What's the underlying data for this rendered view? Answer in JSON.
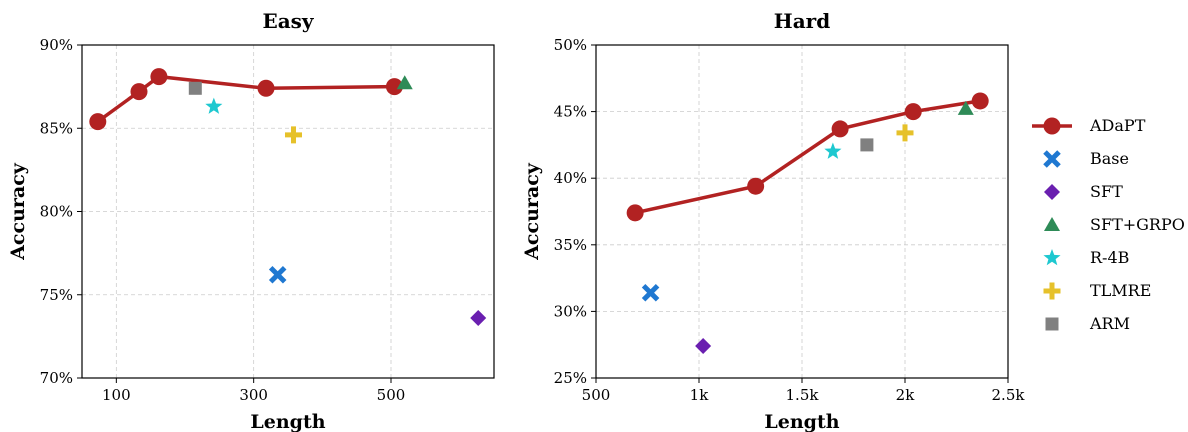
{
  "chart_data": [
    {
      "type": "scatter",
      "title": "Easy",
      "xlabel": "Length",
      "ylabel": "Accuracy",
      "xlim": [
        50,
        650
      ],
      "ylim": [
        70,
        90
      ],
      "xticks": [
        100,
        300,
        500
      ],
      "xtick_labels": [
        "100",
        "300",
        "500"
      ],
      "yticks": [
        70,
        75,
        80,
        85,
        90
      ],
      "ytick_labels": [
        "70%",
        "75%",
        "80%",
        "85%",
        "90%"
      ],
      "grid": true,
      "series": [
        {
          "name": "ADaPT",
          "marker": "circle-line",
          "color": "#b22222",
          "x": [
            73,
            133,
            162,
            318,
            505
          ],
          "y": [
            85.4,
            87.2,
            88.1,
            87.4,
            87.5
          ]
        },
        {
          "name": "Base",
          "marker": "x",
          "color": "#1f78d1",
          "x": [
            335
          ],
          "y": [
            76.2
          ]
        },
        {
          "name": "SFT",
          "marker": "diamond",
          "color": "#6a1fb0",
          "x": [
            627
          ],
          "y": [
            73.6
          ]
        },
        {
          "name": "SFT+GRPO",
          "marker": "triangle",
          "color": "#2e8b57",
          "x": [
            520
          ],
          "y": [
            87.7
          ]
        },
        {
          "name": "R-4B",
          "marker": "star",
          "color": "#1ec8d0",
          "x": [
            242
          ],
          "y": [
            86.3
          ]
        },
        {
          "name": "TLMRE",
          "marker": "plus",
          "color": "#e6c12a",
          "x": [
            358
          ],
          "y": [
            84.6
          ]
        },
        {
          "name": "ARM",
          "marker": "square",
          "color": "#808080",
          "x": [
            215
          ],
          "y": [
            87.4
          ]
        }
      ]
    },
    {
      "type": "scatter",
      "title": "Hard",
      "xlabel": "Length",
      "ylabel": "Accuracy",
      "xlim": [
        500,
        2500
      ],
      "ylim": [
        25,
        50
      ],
      "xticks": [
        500,
        1000,
        1500,
        2000,
        2500
      ],
      "xtick_labels": [
        "500",
        "1k",
        "1.5k",
        "2k",
        "2.5k"
      ],
      "yticks": [
        25,
        30,
        35,
        40,
        45,
        50
      ],
      "ytick_labels": [
        "25%",
        "30%",
        "35%",
        "40%",
        "45%",
        "50%"
      ],
      "grid": true,
      "series": [
        {
          "name": "ADaPT",
          "marker": "circle-line",
          "color": "#b22222",
          "x": [
            690,
            1275,
            1685,
            2040,
            2365
          ],
          "y": [
            37.4,
            39.4,
            43.7,
            45.0,
            45.8
          ]
        },
        {
          "name": "Base",
          "marker": "x",
          "color": "#1f78d1",
          "x": [
            765
          ],
          "y": [
            31.4
          ]
        },
        {
          "name": "SFT",
          "marker": "diamond",
          "color": "#6a1fb0",
          "x": [
            1020
          ],
          "y": [
            27.4
          ]
        },
        {
          "name": "SFT+GRPO",
          "marker": "triangle",
          "color": "#2e8b57",
          "x": [
            2295
          ],
          "y": [
            45.2
          ]
        },
        {
          "name": "R-4B",
          "marker": "star",
          "color": "#1ec8d0",
          "x": [
            1650
          ],
          "y": [
            42.0
          ]
        },
        {
          "name": "TLMRE",
          "marker": "plus",
          "color": "#e6c12a",
          "x": [
            2000
          ],
          "y": [
            43.4
          ]
        },
        {
          "name": "ARM",
          "marker": "square",
          "color": "#808080",
          "x": [
            1815
          ],
          "y": [
            42.5
          ]
        }
      ]
    }
  ],
  "legend": {
    "placement": "right",
    "items": [
      {
        "label": "ADaPT",
        "marker": "circle-line",
        "color": "#b22222"
      },
      {
        "label": "Base",
        "marker": "x",
        "color": "#1f78d1"
      },
      {
        "label": "SFT",
        "marker": "diamond",
        "color": "#6a1fb0"
      },
      {
        "label": "SFT+GRPO",
        "marker": "triangle",
        "color": "#2e8b57"
      },
      {
        "label": "R-4B",
        "marker": "star",
        "color": "#1ec8d0"
      },
      {
        "label": "TLMRE",
        "marker": "plus",
        "color": "#e6c12a"
      },
      {
        "label": "ARM",
        "marker": "square",
        "color": "#808080"
      }
    ]
  }
}
